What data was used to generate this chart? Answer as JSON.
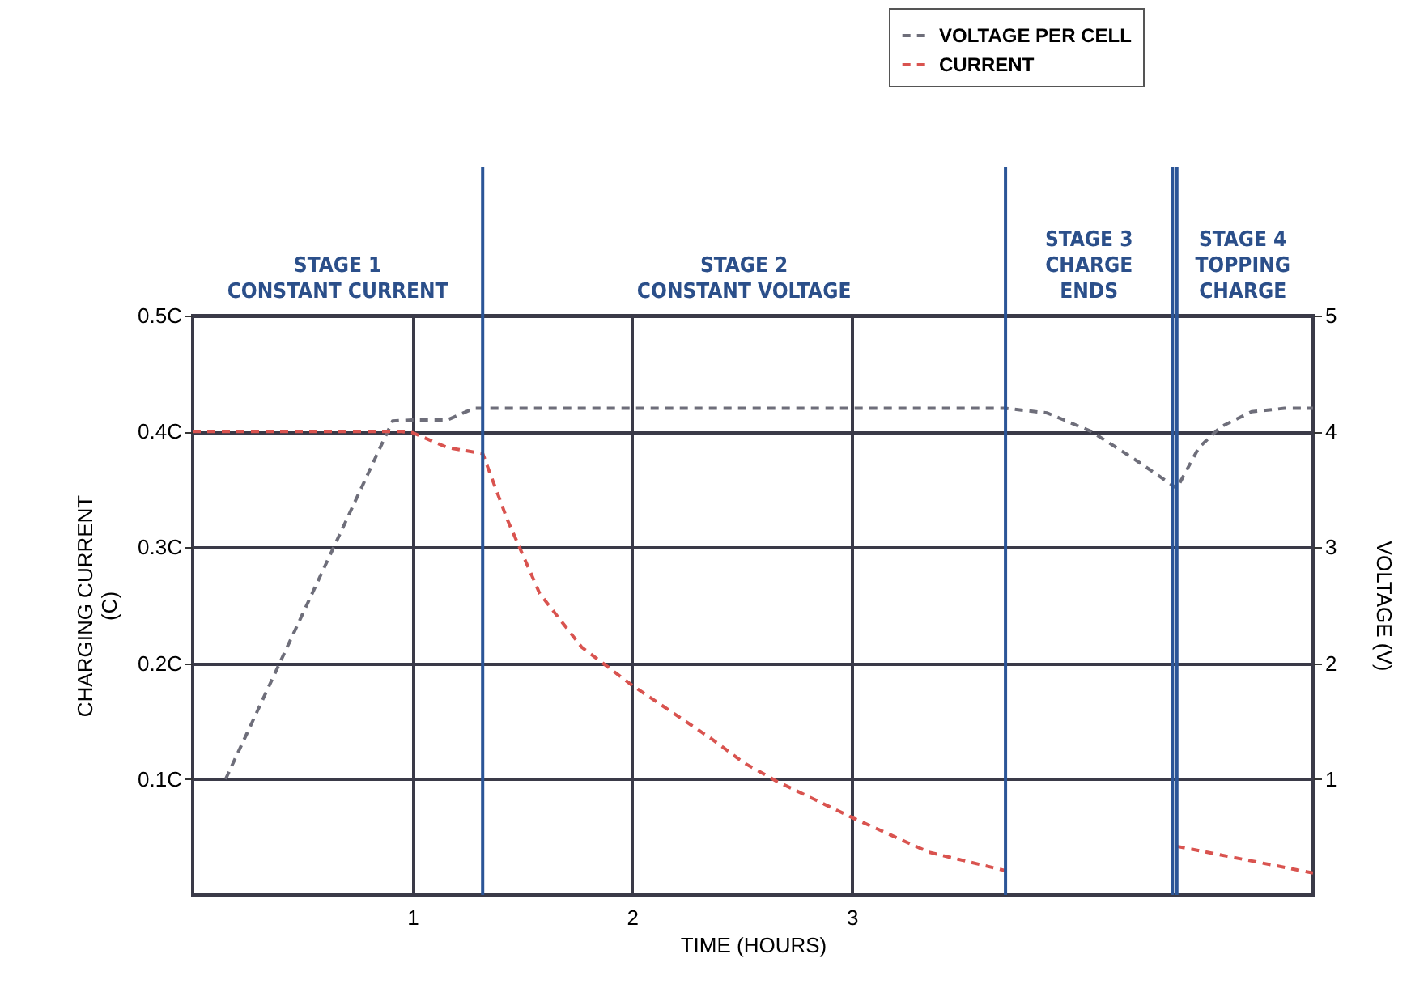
{
  "chart_data": {
    "type": "line",
    "xlabel": "TIME (HOURS)",
    "ylabel": "CHARGING CURRENT\n(C)",
    "y2label": "VOLTAGE (V)",
    "xlim": [
      0,
      5.1
    ],
    "xticks": [
      1,
      2,
      3
    ],
    "ylim": [
      0,
      0.5
    ],
    "yticks": [
      {
        "value": 0.1,
        "label": "0.1C"
      },
      {
        "value": 0.2,
        "label": "0.2C"
      },
      {
        "value": 0.3,
        "label": "0.3C"
      },
      {
        "value": 0.4,
        "label": "0.4C"
      },
      {
        "value": 0.5,
        "label": "0.5C"
      }
    ],
    "y2lim": [
      0,
      5
    ],
    "y2ticks": [
      1,
      2,
      3,
      4,
      5
    ],
    "grid": true,
    "legend": "top right",
    "line_style": "dashed",
    "series": [
      {
        "name": "VOLTAGE PER CELL",
        "color": "#6e6e7a",
        "axis": "y2",
        "x": [
          0.15,
          0.91,
          1.0,
          1.16,
          1.28,
          1.4,
          2.0,
          3.0,
          3.7,
          3.89,
          4.09,
          4.28,
          4.48,
          4.58,
          4.68,
          4.82,
          4.97,
          5.1
        ],
        "values": [
          1.0,
          4.09,
          4.1,
          4.1,
          4.2,
          4.2,
          4.2,
          4.2,
          4.2,
          4.16,
          4.0,
          3.77,
          3.51,
          3.86,
          4.04,
          4.17,
          4.2,
          4.2
        ]
      },
      {
        "name": "CURRENT",
        "color": "#d9534f",
        "x": [
          0,
          0.5,
          0.95,
          1.0,
          1.16,
          1.32,
          1.43,
          1.58,
          1.77,
          2.0,
          2.36,
          2.51,
          2.66,
          3.0,
          3.35,
          3.7,
          4.1,
          4.48,
          5.1
        ],
        "values": [
          0.4,
          0.4,
          0.4,
          0.399,
          0.386,
          0.381,
          0.325,
          0.26,
          0.214,
          0.181,
          0.135,
          0.114,
          0.098,
          0.067,
          0.037,
          0.021,
          null,
          0.042,
          0.019
        ]
      }
    ],
    "ref_lines": [
      {
        "axis": "x",
        "value": 1.32,
        "color": "#2b5597"
      },
      {
        "axis": "x",
        "value": 3.7,
        "color": "#2b5597"
      },
      {
        "axis": "x",
        "value": 4.46,
        "color": "#2b5597"
      },
      {
        "axis": "x",
        "value": 4.48,
        "color": "#2b5597"
      }
    ],
    "annotations": [
      "STAGE 1\nCONSTANT CURRENT",
      "STAGE 2\nCONSTANT VOLTAGE",
      "STAGE 3\nCHARGE\nENDS",
      "STAGE 4\nTOPPING\nCHARGE"
    ]
  }
}
